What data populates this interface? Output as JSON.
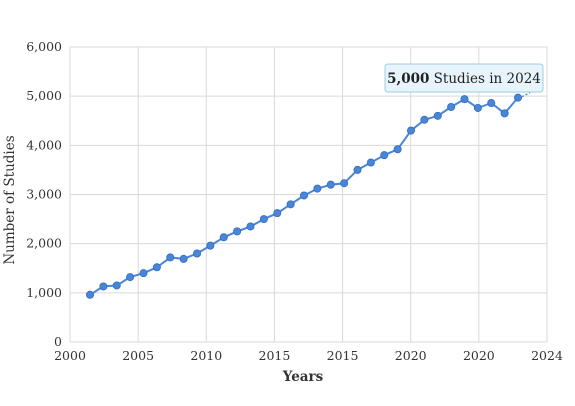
{
  "chart_data": {
    "type": "line",
    "xlabel": "Years",
    "ylabel": "Number of Studies",
    "ylim": [
      0,
      6000
    ],
    "grid": true,
    "x_tick_labels": [
      "2000",
      "2005",
      "2010",
      "2015",
      "2015",
      "2020",
      "2020",
      "2024"
    ],
    "y_tick_labels": [
      "0",
      "1,000",
      "2,000",
      "3,000",
      "4,000",
      "5,000",
      "6,000"
    ],
    "series": [
      {
        "color": "#4a86d8",
        "values": [
          960,
          1130,
          1150,
          1320,
          1400,
          1520,
          1720,
          1690,
          1800,
          1960,
          2130,
          2250,
          2350,
          2500,
          2620,
          2800,
          2980,
          3120,
          3200,
          3230,
          3500,
          3650,
          3800,
          3920,
          4300,
          4520,
          4600,
          4780,
          4940,
          4760,
          4860,
          4650,
          4970
        ]
      }
    ],
    "annotation": {
      "bold": "5,000",
      "text": " Studies in 2024"
    }
  }
}
